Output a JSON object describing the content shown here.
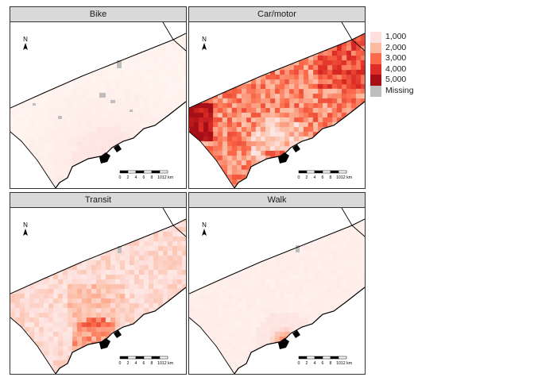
{
  "panels": [
    {
      "title": "Bike",
      "mode": "bike"
    },
    {
      "title": "Car/motor",
      "mode": "car"
    },
    {
      "title": "Transit",
      "mode": "transit"
    },
    {
      "title": "Walk",
      "mode": "walk"
    }
  ],
  "north_arrow_label": "N",
  "scalebar": {
    "ticks": [
      "0",
      "2",
      "4",
      "6",
      "8",
      "10",
      "12 km"
    ]
  },
  "legend": {
    "entries": [
      {
        "label": "1,000",
        "color": "#fde0dd"
      },
      {
        "label": "2,000",
        "color": "#fcbba1"
      },
      {
        "label": "3,000",
        "color": "#fb6a4a"
      },
      {
        "label": "4,000",
        "color": "#de2d26"
      },
      {
        "label": "5,000",
        "color": "#a50f15"
      }
    ],
    "missing": {
      "label": "Missing",
      "color": "#bebebe"
    }
  },
  "colors": {
    "frame": "#333333",
    "strip_bg": "#d9d9d9",
    "missing": "#bebebe",
    "land_outline": "#000000"
  }
}
